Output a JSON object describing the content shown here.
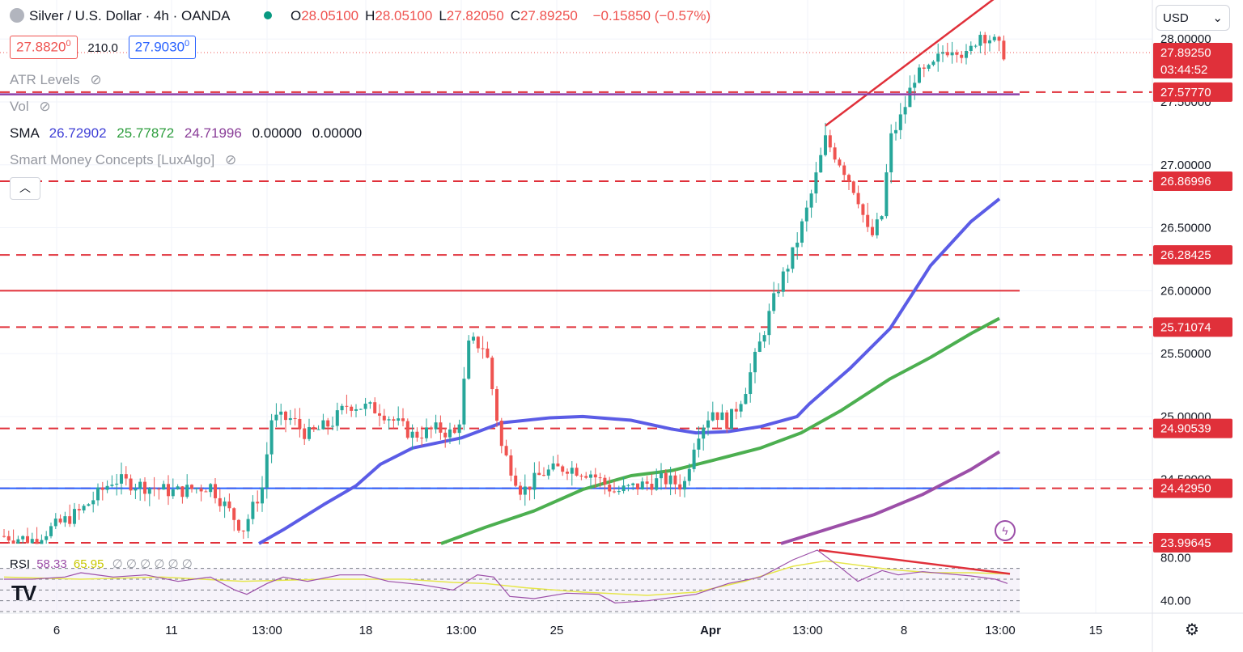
{
  "header": {
    "symbol": "Silver / U.S. Dollar · 4h · OANDA",
    "ohlc": [
      {
        "k": "O",
        "v": "28.05100"
      },
      {
        "k": "H",
        "v": "28.05100"
      },
      {
        "k": "L",
        "v": "27.82050"
      },
      {
        "k": "C",
        "v": "27.89250"
      }
    ],
    "change": "−0.15850 (−0.57%)",
    "sell_price": "27.8820",
    "sell_sup": "0",
    "spread": "210.0",
    "buy_price": "27.9030",
    "buy_sup": "0"
  },
  "indicators": {
    "atr": "ATR Levels",
    "vol": "Vol",
    "sma_label": "SMA",
    "sma_values": [
      "26.72902",
      "25.77872",
      "24.71996",
      "0.00000",
      "0.00000"
    ],
    "smc": "Smart Money Concepts [LuxAlgo]"
  },
  "rsi": {
    "label": "RSI",
    "v1": "58.33",
    "v2": "65.95",
    "hidden": "∅ ∅ ∅ ∅ ∅ ∅"
  },
  "currency": "USD",
  "colors": {
    "bull": "#26a69a",
    "bear": "#ef5350",
    "level": "#e0303a",
    "sma50": "#5b5ce6",
    "sma100": "#4caf50",
    "sma200": "#9c4fa8",
    "blue_level": "#2962ff"
  },
  "chart_data": {
    "type": "candlestick",
    "title": "Silver / U.S. Dollar · 4h · OANDA",
    "x_ticks": [
      "6",
      "11",
      "13:00",
      "18",
      "13:00",
      "25",
      "Apr",
      "13:00",
      "8",
      "13:00",
      "15"
    ],
    "y_ticks": [
      "28.00000",
      "27.50000",
      "27.00000",
      "26.50000",
      "26.00000",
      "25.50000",
      "25.00000",
      "24.50000"
    ],
    "ylim": [
      23.99,
      28.31
    ],
    "price_labels": [
      {
        "value": 27.8925,
        "text": "27.89250",
        "sub": "03:44:52",
        "kind": "last"
      },
      {
        "value": 27.5777,
        "text": "27.57770",
        "kind": "level"
      },
      {
        "value": 26.86996,
        "text": "26.86996",
        "kind": "level"
      },
      {
        "value": 26.28425,
        "text": "26.28425",
        "kind": "level"
      },
      {
        "value": 25.71074,
        "text": "25.71074",
        "kind": "level"
      },
      {
        "value": 24.90539,
        "text": "24.90539",
        "kind": "level"
      },
      {
        "value": 24.4295,
        "text": "24.42950",
        "kind": "level"
      },
      {
        "value": 23.99645,
        "text": "23.99645",
        "kind": "level"
      }
    ],
    "dashed_levels": [
      27.5777,
      26.86996,
      26.28425,
      25.71074,
      24.90539,
      24.4295,
      23.99645
    ],
    "solid_levels": [
      {
        "value": 26.0,
        "color": "red"
      },
      {
        "value": 24.4295,
        "color": "blue"
      },
      {
        "value": 28.38,
        "color": "red"
      }
    ],
    "close_path": [
      [
        5,
        24.05
      ],
      [
        40,
        24.02
      ],
      [
        100,
        24.25
      ],
      [
        140,
        24.5
      ],
      [
        175,
        24.45
      ],
      [
        215,
        24.4
      ],
      [
        260,
        24.45
      ],
      [
        300,
        24.1
      ],
      [
        325,
        24.45
      ],
      [
        335,
        24.98
      ],
      [
        360,
        24.98
      ],
      [
        380,
        24.85
      ],
      [
        410,
        24.95
      ],
      [
        430,
        25.1
      ],
      [
        470,
        25.05
      ],
      [
        510,
        24.85
      ],
      [
        540,
        24.9
      ],
      [
        565,
        24.85
      ],
      [
        580,
        25.6
      ],
      [
        600,
        25.55
      ],
      [
        620,
        24.75
      ],
      [
        645,
        24.4
      ],
      [
        670,
        24.55
      ],
      [
        700,
        24.6
      ],
      [
        730,
        24.55
      ],
      [
        760,
        24.4
      ],
      [
        790,
        24.45
      ],
      [
        820,
        24.5
      ],
      [
        845,
        24.45
      ],
      [
        860,
        24.85
      ],
      [
        880,
        25.05
      ],
      [
        900,
        24.95
      ],
      [
        920,
        25.2
      ],
      [
        940,
        25.6
      ],
      [
        960,
        26.0
      ],
      [
        980,
        26.3
      ],
      [
        1000,
        26.7
      ],
      [
        1020,
        27.2
      ],
      [
        1040,
        27.0
      ],
      [
        1060,
        26.75
      ],
      [
        1075,
        26.4
      ],
      [
        1090,
        26.6
      ],
      [
        1100,
        27.2
      ],
      [
        1115,
        27.4
      ],
      [
        1130,
        27.7
      ],
      [
        1150,
        27.75
      ],
      [
        1165,
        27.9
      ],
      [
        1180,
        27.95
      ],
      [
        1195,
        27.85
      ],
      [
        1210,
        28.05
      ],
      [
        1225,
        28.0
      ],
      [
        1240,
        27.89
      ]
    ],
    "sma_series": [
      {
        "name": "SMA 50",
        "color": "#5b5ce6",
        "points": [
          [
            320,
            23.99
          ],
          [
            350,
            24.1
          ],
          [
            400,
            24.3
          ],
          [
            440,
            24.45
          ],
          [
            470,
            24.62
          ],
          [
            510,
            24.75
          ],
          [
            570,
            24.83
          ],
          [
            620,
            24.95
          ],
          [
            680,
            24.99
          ],
          [
            720,
            25.0
          ],
          [
            780,
            24.97
          ],
          [
            830,
            24.9
          ],
          [
            860,
            24.87
          ],
          [
            900,
            24.88
          ],
          [
            940,
            24.92
          ],
          [
            985,
            25.0
          ],
          [
            1000,
            25.1
          ],
          [
            1050,
            25.38
          ],
          [
            1100,
            25.7
          ],
          [
            1150,
            26.2
          ],
          [
            1200,
            26.55
          ],
          [
            1235,
            26.73
          ]
        ]
      },
      {
        "name": "SMA 100",
        "color": "#4caf50",
        "points": [
          [
            545,
            23.99
          ],
          [
            600,
            24.12
          ],
          [
            660,
            24.25
          ],
          [
            720,
            24.42
          ],
          [
            780,
            24.53
          ],
          [
            830,
            24.57
          ],
          [
            880,
            24.65
          ],
          [
            940,
            24.75
          ],
          [
            990,
            24.87
          ],
          [
            1040,
            25.05
          ],
          [
            1100,
            25.3
          ],
          [
            1150,
            25.47
          ],
          [
            1200,
            25.66
          ],
          [
            1235,
            25.78
          ]
        ]
      },
      {
        "name": "SMA 200",
        "color": "#9c4fa8",
        "points": [
          [
            965,
            23.99
          ],
          [
            1020,
            24.1
          ],
          [
            1080,
            24.22
          ],
          [
            1140,
            24.38
          ],
          [
            1200,
            24.58
          ],
          [
            1235,
            24.72
          ]
        ]
      }
    ],
    "trendlines": [
      {
        "from": [
          1020,
          27.31
        ],
        "to": [
          1245,
          28.4
        ],
        "color": "red"
      },
      {
        "from": [
          0,
          27.56
        ],
        "to": [
          1260,
          27.56
        ],
        "color": "purple"
      }
    ],
    "rsi_panel": {
      "ylim": [
        30,
        90
      ],
      "ticks": [
        "80.00",
        "40.00"
      ],
      "levels": [
        70,
        60,
        50,
        40,
        30
      ],
      "rsi": [
        [
          5,
          60
        ],
        [
          40,
          60
        ],
        [
          80,
          62
        ],
        [
          100,
          66
        ],
        [
          140,
          62
        ],
        [
          180,
          64
        ],
        [
          220,
          58
        ],
        [
          260,
          62
        ],
        [
          290,
          50
        ],
        [
          305,
          46
        ],
        [
          330,
          56
        ],
        [
          350,
          62
        ],
        [
          380,
          58
        ],
        [
          420,
          64
        ],
        [
          450,
          64
        ],
        [
          480,
          58
        ],
        [
          520,
          55
        ],
        [
          560,
          50
        ],
        [
          590,
          64
        ],
        [
          610,
          62
        ],
        [
          630,
          44
        ],
        [
          660,
          42
        ],
        [
          700,
          47
        ],
        [
          740,
          46
        ],
        [
          760,
          38
        ],
        [
          800,
          40
        ],
        [
          840,
          44
        ],
        [
          860,
          46
        ],
        [
          900,
          56
        ],
        [
          940,
          62
        ],
        [
          980,
          78
        ],
        [
          1010,
          87
        ],
        [
          1040,
          70
        ],
        [
          1060,
          58
        ],
        [
          1090,
          68
        ],
        [
          1110,
          64
        ],
        [
          1140,
          67
        ],
        [
          1170,
          65
        ],
        [
          1200,
          63
        ],
        [
          1230,
          60
        ],
        [
          1245,
          56
        ]
      ],
      "ma": [
        [
          5,
          62
        ],
        [
          100,
          60
        ],
        [
          200,
          62
        ],
        [
          300,
          58
        ],
        [
          400,
          60
        ],
        [
          500,
          60
        ],
        [
          560,
          57
        ],
        [
          600,
          56
        ],
        [
          650,
          52
        ],
        [
          720,
          48
        ],
        [
          800,
          45
        ],
        [
          860,
          48
        ],
        [
          920,
          58
        ],
        [
          980,
          72
        ],
        [
          1020,
          77
        ],
        [
          1060,
          73
        ],
        [
          1100,
          69
        ],
        [
          1150,
          66
        ],
        [
          1200,
          66
        ],
        [
          1245,
          65
        ]
      ],
      "divergence": {
        "from": [
          1012,
          87
        ],
        "to": [
          1248,
          65
        ]
      }
    }
  }
}
